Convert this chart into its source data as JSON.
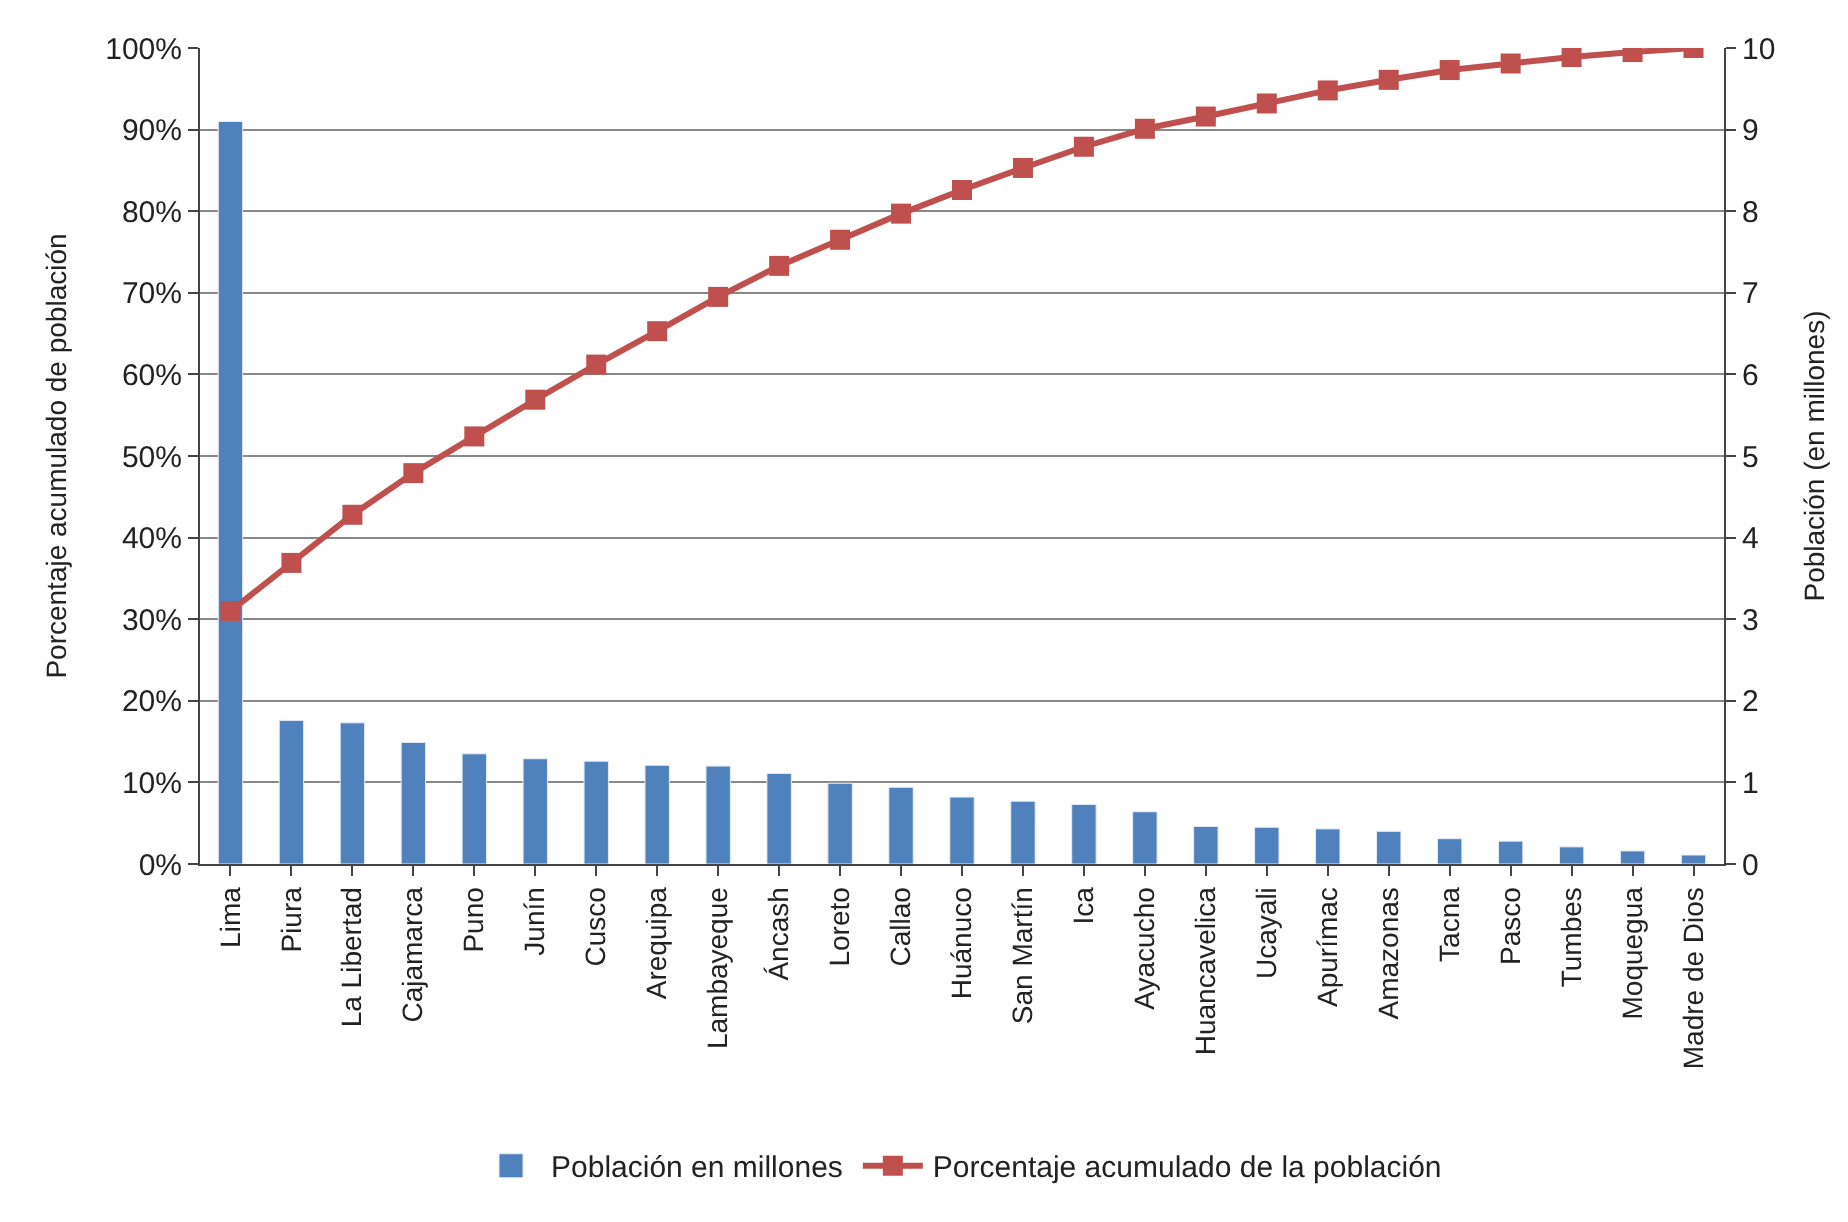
{
  "chart_data": {
    "type": "bar",
    "ylabel": "Porcentaje acumulado de población",
    "y2label": "Población (en millones)",
    "categories": [
      "Lima",
      "Piura",
      "La Libertad",
      "Cajamarca",
      "Puno",
      "Junín",
      "Cusco",
      "Arequipa",
      "Lambayeque",
      "Áncash",
      "Loreto",
      "Callao",
      "Huánuco",
      "San Martín",
      "Ica",
      "Ayacucho",
      "Huancavelica",
      "Ucayali",
      "Apurímac",
      "Amazonas",
      "Tacna",
      "Pasco",
      "Tumbes",
      "Moquegua",
      "Madre de Dios"
    ],
    "series": [
      {
        "name": "Población en millones",
        "axis": "y2",
        "color": "#4f81bd",
        "values": [
          9.1,
          1.76,
          1.73,
          1.49,
          1.35,
          1.29,
          1.26,
          1.21,
          1.2,
          1.11,
          0.99,
          0.94,
          0.82,
          0.77,
          0.73,
          0.64,
          0.46,
          0.45,
          0.43,
          0.4,
          0.31,
          0.28,
          0.21,
          0.16,
          0.11
        ]
      },
      {
        "name": "Porcentaje acumulado de la población",
        "type": "line",
        "axis": "y",
        "color": "#c0504d",
        "marker": "square",
        "values": [
          31,
          36.9,
          42.8,
          47.9,
          52.4,
          56.9,
          61.2,
          65.3,
          69.5,
          73.3,
          76.5,
          79.7,
          82.6,
          85.3,
          87.9,
          90.1,
          91.6,
          93.2,
          94.8,
          96.1,
          97.3,
          98.1,
          98.9,
          99.5,
          100
        ]
      }
    ],
    "ylim": [
      0,
      100
    ],
    "yticks": [
      {
        "value": 0,
        "label": "0%"
      },
      {
        "value": 10,
        "label": "10%"
      },
      {
        "value": 20,
        "label": "20%"
      },
      {
        "value": 30,
        "label": "30%"
      },
      {
        "value": 40,
        "label": "40%"
      },
      {
        "value": 50,
        "label": "50%"
      },
      {
        "value": 60,
        "label": "60%"
      },
      {
        "value": 70,
        "label": "70%"
      },
      {
        "value": 80,
        "label": "80%"
      },
      {
        "value": 90,
        "label": "90%"
      },
      {
        "value": 100,
        "label": "100%"
      }
    ],
    "y2lim": [
      0,
      10
    ],
    "y2ticks": [
      0,
      1,
      2,
      3,
      4,
      5,
      6,
      7,
      8,
      9,
      10
    ],
    "grid": "y",
    "legend": "bottom"
  }
}
